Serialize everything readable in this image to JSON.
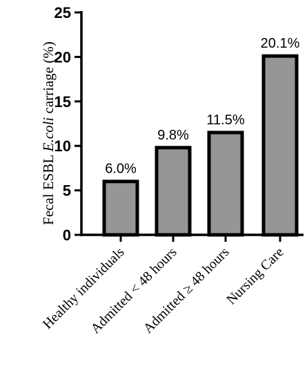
{
  "chart_data": {
    "type": "bar",
    "categories": [
      "Healthy individuals",
      "Admitted < 48 hours",
      "Admitted ≥ 48 hours",
      "Nursing Care"
    ],
    "values": [
      6.0,
      9.8,
      11.5,
      20.1
    ],
    "data_labels": [
      "6.0%",
      "9.8%",
      "11.5%",
      "20.1%"
    ],
    "title": "",
    "xlabel": "",
    "ylabel": {
      "prefix": "Fecal ESBL ",
      "italic": "E.coli",
      "suffix": " carriage (%)"
    },
    "ylim": [
      0,
      25
    ],
    "yticks": [
      0,
      5,
      10,
      15,
      20,
      25
    ],
    "bar_color": "#969696",
    "grid": false
  }
}
